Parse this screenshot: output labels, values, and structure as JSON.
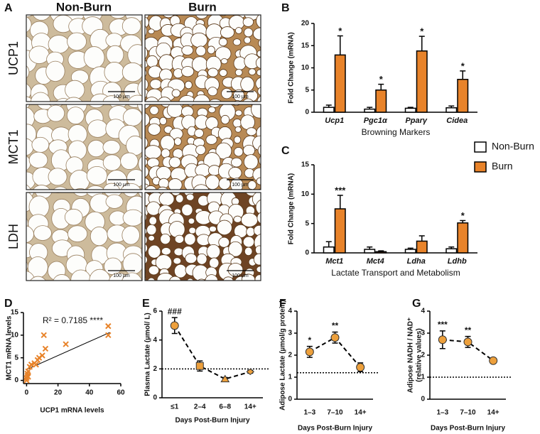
{
  "micrographs": {
    "panel": "A",
    "columns": [
      "Non-Burn",
      "Burn"
    ],
    "rows": [
      "UCP1",
      "MCT1",
      "LDH"
    ],
    "scale_bar": "100 µm"
  },
  "chart_data": [
    {
      "panel": "B",
      "type": "bar",
      "ylabel": "Fold Change (mRNA)",
      "xlabel": "Browning Markers",
      "categories": [
        "Ucp1",
        "Pgc1α",
        "Pparγ",
        "Cidea"
      ],
      "ylim": [
        0,
        20
      ],
      "yticks": [
        0,
        5,
        10,
        15,
        20
      ],
      "series": [
        {
          "color": "#ffffff",
          "values": [
            1.1,
            0.7,
            0.9,
            1.0
          ],
          "errors": [
            0.5,
            0.4,
            0.2,
            0.4
          ]
        },
        {
          "color": "#E8832A",
          "values": [
            12.9,
            5.0,
            13.8,
            7.4
          ],
          "errors": [
            4.3,
            1.3,
            3.3,
            1.9
          ],
          "significance": [
            "*",
            "*",
            "*",
            "*"
          ]
        }
      ]
    },
    {
      "panel": "C",
      "type": "bar",
      "ylabel": "Fold Change (mRNA)",
      "xlabel": "Lactate Transport and Metabolism",
      "categories": [
        "Mct1",
        "Mct4",
        "Ldha",
        "Ldhb"
      ],
      "ylim": [
        0,
        15
      ],
      "yticks": [
        0,
        5,
        10,
        15
      ],
      "legend": "right",
      "series": [
        {
          "name": "Non-Burn",
          "color": "#ffffff",
          "values": [
            1.0,
            0.6,
            0.6,
            0.7
          ],
          "errors": [
            0.9,
            0.4,
            0.2,
            0.3
          ]
        },
        {
          "name": "Burn",
          "color": "#E8832A",
          "values": [
            7.5,
            0.2,
            2.0,
            5.1
          ],
          "errors": [
            2.3,
            0.15,
            0.9,
            0.4
          ],
          "significance": [
            "***",
            null,
            null,
            "*"
          ]
        }
      ]
    },
    {
      "panel": "D",
      "type": "scatter",
      "xlabel": "UCP1 mRNA levels",
      "ylabel": "MCT1 mRNA levels",
      "annotation": "R² = 0.7185 ****",
      "xlim": [
        -2,
        60
      ],
      "ylim": [
        -0.7,
        15
      ],
      "xticks": [
        0,
        20,
        40,
        60
      ],
      "yticks": [
        0,
        5,
        10,
        15
      ],
      "color": "#E8832A",
      "marker": "x",
      "x": [
        0,
        0,
        0.5,
        0.5,
        1,
        1,
        2,
        3,
        5,
        6,
        7,
        8,
        10,
        11,
        12,
        25,
        52,
        52
      ],
      "y": [
        0,
        0.5,
        1,
        1.5,
        0.8,
        2,
        3,
        3.5,
        3.8,
        3.5,
        4.5,
        5,
        5.5,
        10,
        7,
        8,
        10,
        12
      ],
      "trendline": {
        "x": [
          0,
          53
        ],
        "y": [
          2.4,
          10.6
        ]
      }
    },
    {
      "panel": "E",
      "type": "line",
      "ylabel": "Plasma Lactate (µmol/ L)",
      "xlabel": "Days Post-Burn Injury",
      "categories": [
        "≤1",
        "2–4",
        "6–8",
        "14+"
      ],
      "values": [
        5.0,
        2.2,
        1.3,
        1.8
      ],
      "errors": [
        0.55,
        0.35,
        0.1,
        0.1
      ],
      "significance": [
        "###",
        null,
        null,
        null
      ],
      "markers": [
        "circle",
        "square",
        "triangle",
        "diamond"
      ],
      "color": "#EDA03C",
      "ylim": [
        0,
        6
      ],
      "yticks": [
        0,
        2,
        4,
        6
      ],
      "reference_line": 2
    },
    {
      "panel": "F",
      "type": "line",
      "ylabel": "Adipose Lactate (µmol/g protein)",
      "xlabel": "Days Post-Burn Injury",
      "categories": [
        "1–3",
        "7–10",
        "14+"
      ],
      "values": [
        2.15,
        2.8,
        1.45
      ],
      "errors": [
        0.25,
        0.25,
        0.2
      ],
      "significance": [
        "*",
        "**",
        null
      ],
      "markers": [
        "circle",
        "circle",
        "circle"
      ],
      "color": "#EDA03C",
      "ylim": [
        0,
        4
      ],
      "yticks": [
        0,
        1,
        2,
        3,
        4
      ],
      "reference_line": 1.2
    },
    {
      "panel": "G",
      "type": "line",
      "ylabel": [
        "Adipose NADH / NAD⁺",
        "(relative values)"
      ],
      "xlabel": "Days Post-Burn Injury",
      "categories": [
        "1–3",
        "7–10",
        "14+"
      ],
      "values": [
        2.7,
        2.6,
        1.75
      ],
      "errors": [
        0.4,
        0.25,
        0.07
      ],
      "significance": [
        "***",
        "**",
        null
      ],
      "markers": [
        "circle",
        "circle",
        "circle"
      ],
      "color": "#EDA03C",
      "ylim": [
        0,
        4
      ],
      "yticks": [
        0,
        1,
        2,
        3,
        4
      ],
      "reference_line": 1
    }
  ]
}
